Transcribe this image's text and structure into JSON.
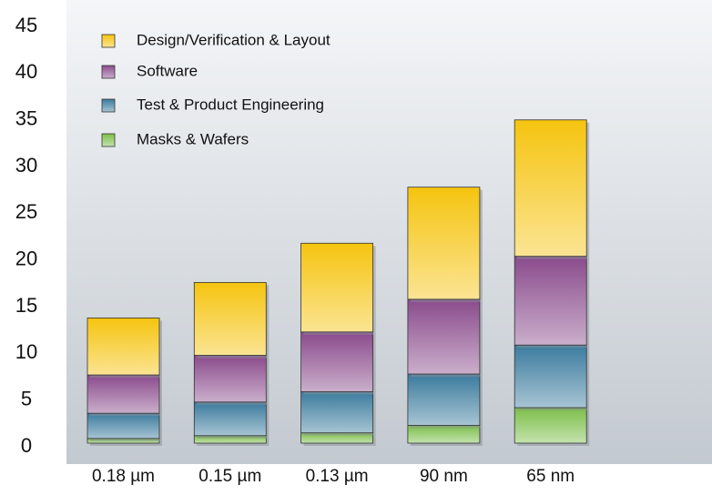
{
  "chart_data": {
    "type": "stacked_bar",
    "categories": [
      "0.18 µm",
      "0.15 µm",
      "0.13 µm",
      "90 nm",
      "65 nm"
    ],
    "series": [
      {
        "name": "Masks & Wafers",
        "color": "#7cbf4a",
        "values": [
          0.5,
          0.8,
          1.1,
          1.9,
          3.8
        ]
      },
      {
        "name": "Test & Product Engineering",
        "color": "#3b7b9e",
        "values": [
          2.7,
          3.6,
          4.4,
          5.5,
          6.7
        ]
      },
      {
        "name": "Software",
        "color": "#8a4b8c",
        "values": [
          4.1,
          5.0,
          6.4,
          8.0,
          9.5
        ]
      },
      {
        "name": "Design/Verification & Layout",
        "color": "#f5c40f",
        "values": [
          6.1,
          7.8,
          9.5,
          12.0,
          14.6
        ]
      }
    ],
    "ylim": [
      0,
      45
    ],
    "yticks": [
      0,
      5,
      10,
      15,
      20,
      25,
      30,
      35,
      40,
      45
    ],
    "grid": false
  }
}
